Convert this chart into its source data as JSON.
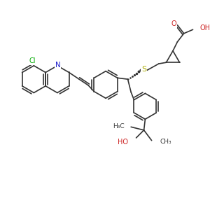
{
  "bg": "#ffffff",
  "bc": "#333333",
  "Nc": "#2222cc",
  "Oc": "#cc2222",
  "Sc": "#aaaa00",
  "Clc": "#00aa00",
  "lw": 1.2,
  "fs": 6.5,
  "xlim": [
    0,
    300
  ],
  "ylim": [
    0,
    300
  ],
  "figsize": [
    3.0,
    3.0
  ],
  "dpi": 100
}
